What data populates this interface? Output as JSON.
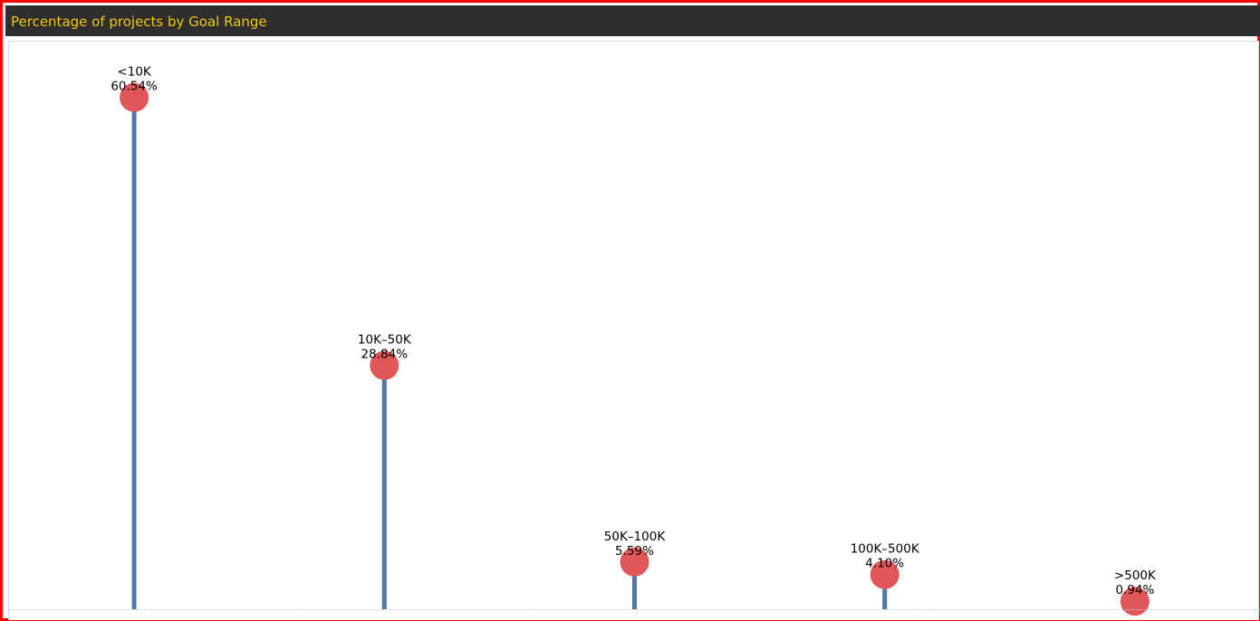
{
  "header": {
    "title": "Percentage of projects by Goal Range",
    "title_color": "#f2c811",
    "bar_color": "#2e2e2e"
  },
  "frame": {
    "border_color": "#ff0000"
  },
  "chart_data": {
    "type": "lollipop",
    "title": "Percentage of projects by Goal Range",
    "categories": [
      "<10K",
      "10K–50K",
      "50K–100K",
      "100K–500K",
      ">500K"
    ],
    "values": [
      60.54,
      28.84,
      5.59,
      4.1,
      0.94
    ],
    "value_labels": [
      "60.54%",
      "28.84%",
      "5.59%",
      "4.10%",
      "0.94%"
    ],
    "unit": "%",
    "ylim": [
      0,
      62
    ],
    "grid": false,
    "legend": "none",
    "stem_color": "#4e79a7",
    "dot_color": "#e15759"
  }
}
